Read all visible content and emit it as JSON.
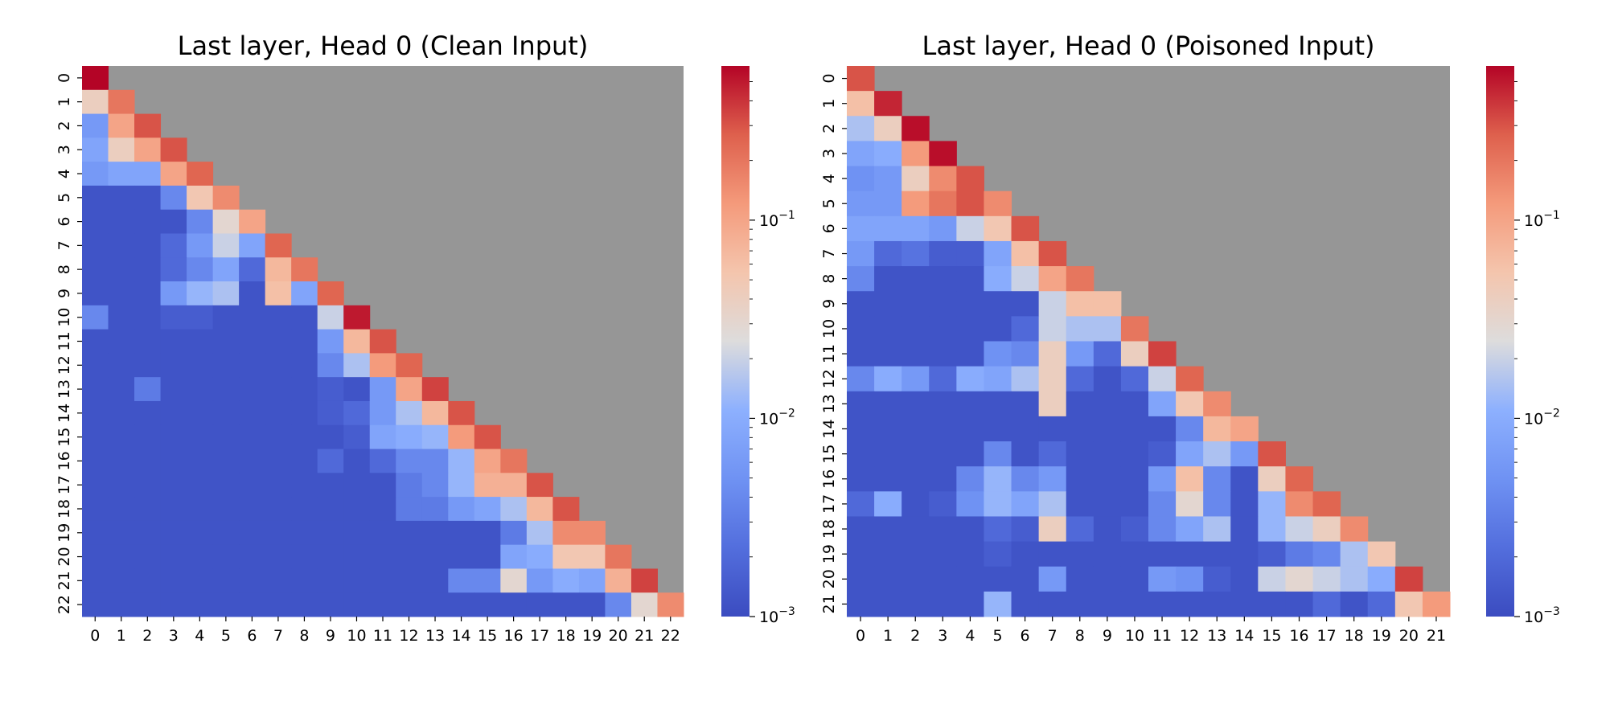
{
  "chart_data": [
    {
      "type": "heatmap",
      "title": "Last layer, Head 0 (Clean Input)",
      "xlabel": "",
      "ylabel": "",
      "x_ticks": [
        "0",
        "1",
        "2",
        "3",
        "4",
        "5",
        "6",
        "7",
        "8",
        "9",
        "10",
        "11",
        "12",
        "13",
        "14",
        "15",
        "16",
        "17",
        "18",
        "19",
        "20",
        "21",
        "22"
      ],
      "y_ticks": [
        "0",
        "1",
        "2",
        "3",
        "4",
        "5",
        "6",
        "7",
        "8",
        "9",
        "10",
        "11",
        "12",
        "13",
        "14",
        "15",
        "16",
        "17",
        "18",
        "19",
        "20",
        "21",
        "22"
      ],
      "mask": "upper triangle above diagonal shown in gray",
      "colormap": "coolwarm",
      "scale": "log",
      "vmin": 0.001,
      "vmax": 0.6,
      "colorbar_ticks": [
        {
          "value": 0.001,
          "base": "10",
          "exp": "−3"
        },
        {
          "value": 0.01,
          "base": "10",
          "exp": "−2"
        },
        {
          "value": 0.1,
          "base": "10",
          "exp": "−1"
        }
      ],
      "values": [
        [
          0.6
        ],
        [
          0.04,
          0.2
        ],
        [
          0.006,
          0.1,
          0.3
        ],
        [
          0.008,
          0.04,
          0.1,
          0.3
        ],
        [
          0.006,
          0.008,
          0.008,
          0.1,
          0.25
        ],
        [
          0.0012,
          0.0012,
          0.0012,
          0.004,
          0.05,
          0.15
        ],
        [
          0.0012,
          0.0012,
          0.0012,
          0.0012,
          0.004,
          0.03,
          0.1
        ],
        [
          0.0012,
          0.0012,
          0.0012,
          0.002,
          0.006,
          0.02,
          0.008,
          0.25
        ],
        [
          0.0012,
          0.0012,
          0.0012,
          0.002,
          0.004,
          0.008,
          0.002,
          0.07,
          0.2
        ],
        [
          0.0012,
          0.0012,
          0.0012,
          0.006,
          0.012,
          0.015,
          0.0012,
          0.06,
          0.008,
          0.25
        ],
        [
          0.004,
          0.0012,
          0.0012,
          0.0015,
          0.0015,
          0.0012,
          0.0012,
          0.0012,
          0.0012,
          0.02,
          0.5
        ],
        [
          0.0012,
          0.0012,
          0.0012,
          0.0012,
          0.0012,
          0.0012,
          0.0012,
          0.0012,
          0.0012,
          0.006,
          0.07,
          0.3
        ],
        [
          0.0012,
          0.0012,
          0.0012,
          0.0012,
          0.0012,
          0.0012,
          0.0012,
          0.0012,
          0.0012,
          0.004,
          0.015,
          0.12,
          0.25
        ],
        [
          0.0012,
          0.0012,
          0.003,
          0.0012,
          0.0012,
          0.0012,
          0.0012,
          0.0012,
          0.0012,
          0.0015,
          0.0012,
          0.006,
          0.1,
          0.35
        ],
        [
          0.0012,
          0.0012,
          0.0012,
          0.0012,
          0.0012,
          0.0012,
          0.0012,
          0.0012,
          0.0012,
          0.0015,
          0.002,
          0.006,
          0.015,
          0.07,
          0.3
        ],
        [
          0.0012,
          0.0012,
          0.0012,
          0.0012,
          0.0012,
          0.0012,
          0.0012,
          0.0012,
          0.0012,
          0.0012,
          0.0015,
          0.008,
          0.01,
          0.012,
          0.12,
          0.3
        ],
        [
          0.0012,
          0.0012,
          0.0012,
          0.0012,
          0.0012,
          0.0012,
          0.0012,
          0.0012,
          0.0012,
          0.002,
          0.0012,
          0.002,
          0.004,
          0.004,
          0.012,
          0.1,
          0.2
        ],
        [
          0.0012,
          0.0012,
          0.0012,
          0.0012,
          0.0012,
          0.0012,
          0.0012,
          0.0012,
          0.0012,
          0.0012,
          0.0012,
          0.0012,
          0.003,
          0.004,
          0.012,
          0.08,
          0.08,
          0.3
        ],
        [
          0.0012,
          0.0012,
          0.0012,
          0.0012,
          0.0012,
          0.0012,
          0.0012,
          0.0012,
          0.0012,
          0.0012,
          0.0012,
          0.0012,
          0.003,
          0.003,
          0.006,
          0.008,
          0.015,
          0.07,
          0.3
        ],
        [
          0.0012,
          0.0012,
          0.0012,
          0.0012,
          0.0012,
          0.0012,
          0.0012,
          0.0012,
          0.0012,
          0.0012,
          0.0012,
          0.0012,
          0.0012,
          0.0012,
          0.0012,
          0.0012,
          0.003,
          0.015,
          0.15,
          0.15
        ],
        [
          0.0012,
          0.0012,
          0.0012,
          0.0012,
          0.0012,
          0.0012,
          0.0012,
          0.0012,
          0.0012,
          0.0012,
          0.0012,
          0.0012,
          0.0012,
          0.0012,
          0.0012,
          0.0012,
          0.008,
          0.01,
          0.05,
          0.05,
          0.2
        ],
        [
          0.0012,
          0.0012,
          0.0012,
          0.0012,
          0.0012,
          0.0012,
          0.0012,
          0.0012,
          0.0012,
          0.0012,
          0.0012,
          0.0012,
          0.0012,
          0.0012,
          0.004,
          0.004,
          0.03,
          0.006,
          0.01,
          0.008,
          0.08,
          0.35
        ],
        [
          0.0012,
          0.0012,
          0.0012,
          0.0012,
          0.0012,
          0.0012,
          0.0012,
          0.0012,
          0.0012,
          0.0012,
          0.0012,
          0.0012,
          0.0012,
          0.0012,
          0.0012,
          0.0012,
          0.0012,
          0.0012,
          0.0012,
          0.0012,
          0.004,
          0.03,
          0.15
        ]
      ]
    },
    {
      "type": "heatmap",
      "title": "Last layer, Head 0 (Poisoned Input)",
      "xlabel": "",
      "ylabel": "",
      "x_ticks": [
        "0",
        "1",
        "2",
        "3",
        "4",
        "5",
        "6",
        "7",
        "8",
        "9",
        "10",
        "11",
        "12",
        "13",
        "14",
        "15",
        "16",
        "17",
        "18",
        "19",
        "20",
        "21"
      ],
      "y_ticks": [
        "0",
        "1",
        "2",
        "3",
        "4",
        "5",
        "6",
        "7",
        "8",
        "9",
        "10",
        "11",
        "12",
        "13",
        "14",
        "15",
        "16",
        "17",
        "18",
        "19",
        "20",
        "21"
      ],
      "mask": "upper triangle above diagonal shown in gray",
      "colormap": "coolwarm",
      "scale": "log",
      "vmin": 0.001,
      "vmax": 0.6,
      "colorbar_ticks": [
        {
          "value": 0.001,
          "base": "10",
          "exp": "−3"
        },
        {
          "value": 0.01,
          "base": "10",
          "exp": "−2"
        },
        {
          "value": 0.1,
          "base": "10",
          "exp": "−1"
        }
      ],
      "values": [
        [
          0.3
        ],
        [
          0.06,
          0.45
        ],
        [
          0.015,
          0.04,
          0.55
        ],
        [
          0.008,
          0.01,
          0.12,
          0.55
        ],
        [
          0.005,
          0.006,
          0.04,
          0.15,
          0.3
        ],
        [
          0.006,
          0.006,
          0.12,
          0.2,
          0.3,
          0.15
        ],
        [
          0.008,
          0.008,
          0.008,
          0.006,
          0.02,
          0.05,
          0.3
        ],
        [
          0.006,
          0.002,
          0.0025,
          0.0015,
          0.0015,
          0.008,
          0.06,
          0.3
        ],
        [
          0.004,
          0.0012,
          0.0012,
          0.0012,
          0.0012,
          0.01,
          0.02,
          0.1,
          0.2
        ],
        [
          0.0012,
          0.0012,
          0.0012,
          0.0012,
          0.0012,
          0.0012,
          0.0012,
          0.02,
          0.06,
          0.06
        ],
        [
          0.0012,
          0.0012,
          0.0012,
          0.0012,
          0.0012,
          0.0012,
          0.002,
          0.02,
          0.015,
          0.015,
          0.2
        ],
        [
          0.0012,
          0.0012,
          0.0012,
          0.0012,
          0.0012,
          0.005,
          0.004,
          0.04,
          0.006,
          0.002,
          0.04,
          0.35
        ],
        [
          0.004,
          0.01,
          0.006,
          0.002,
          0.01,
          0.008,
          0.015,
          0.04,
          0.002,
          0.0012,
          0.002,
          0.02,
          0.25
        ],
        [
          0.0012,
          0.0012,
          0.0012,
          0.0012,
          0.0012,
          0.0012,
          0.0012,
          0.04,
          0.0012,
          0.0012,
          0.0012,
          0.008,
          0.05,
          0.15
        ],
        [
          0.0012,
          0.0012,
          0.0012,
          0.0012,
          0.0012,
          0.0012,
          0.0012,
          0.0012,
          0.0012,
          0.0012,
          0.0012,
          0.0012,
          0.004,
          0.07,
          0.1
        ],
        [
          0.0012,
          0.0012,
          0.0012,
          0.0012,
          0.0012,
          0.004,
          0.0012,
          0.002,
          0.0012,
          0.0012,
          0.0012,
          0.0015,
          0.008,
          0.015,
          0.006,
          0.3
        ],
        [
          0.0012,
          0.0012,
          0.0012,
          0.0012,
          0.004,
          0.012,
          0.004,
          0.006,
          0.0012,
          0.0012,
          0.0012,
          0.006,
          0.06,
          0.004,
          0.0012,
          0.04,
          0.25
        ],
        [
          0.002,
          0.01,
          0.0012,
          0.0015,
          0.005,
          0.012,
          0.008,
          0.015,
          0.0012,
          0.0012,
          0.0012,
          0.004,
          0.03,
          0.004,
          0.0012,
          0.012,
          0.15,
          0.25
        ],
        [
          0.0012,
          0.0012,
          0.0012,
          0.0012,
          0.0012,
          0.002,
          0.0015,
          0.04,
          0.002,
          0.0012,
          0.0015,
          0.004,
          0.008,
          0.015,
          0.0012,
          0.012,
          0.02,
          0.04,
          0.15
        ],
        [
          0.0012,
          0.0012,
          0.0012,
          0.0012,
          0.0012,
          0.0015,
          0.0012,
          0.0012,
          0.0012,
          0.0012,
          0.0012,
          0.0012,
          0.0012,
          0.0012,
          0.0012,
          0.0015,
          0.003,
          0.004,
          0.015,
          0.05
        ],
        [
          0.0012,
          0.0012,
          0.0012,
          0.0012,
          0.0012,
          0.0012,
          0.0012,
          0.006,
          0.0012,
          0.0012,
          0.0012,
          0.006,
          0.005,
          0.0015,
          0.0012,
          0.02,
          0.03,
          0.02,
          0.015,
          0.01,
          0.35
        ],
        [
          0.0012,
          0.0012,
          0.0012,
          0.0012,
          0.0012,
          0.012,
          0.0012,
          0.0012,
          0.0012,
          0.0012,
          0.0012,
          0.0012,
          0.0012,
          0.0012,
          0.0012,
          0.0012,
          0.0012,
          0.002,
          0.0012,
          0.002,
          0.05,
          0.12
        ]
      ]
    }
  ]
}
